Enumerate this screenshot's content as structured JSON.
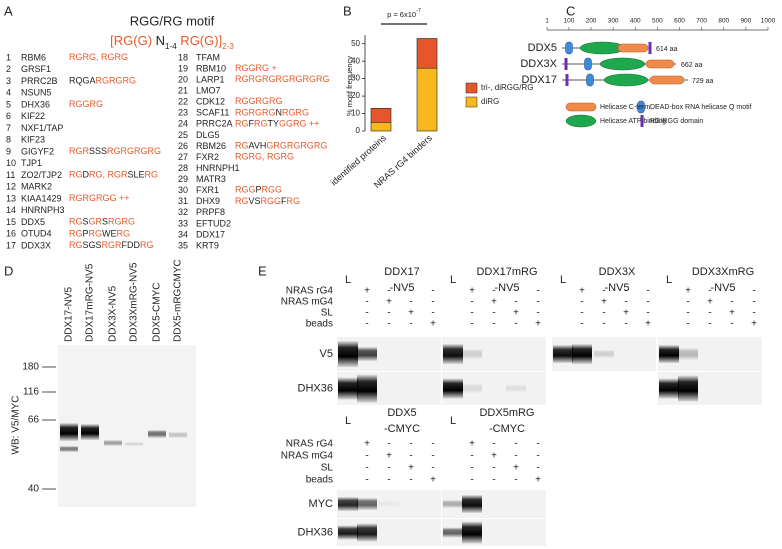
{
  "panel_labels": [
    "A",
    "B",
    "C",
    "D",
    "E"
  ],
  "panel_a": {
    "title": "RGG/RG motif",
    "accent_color": "#e8582a",
    "formula": [
      {
        "text": "[RG(G) ",
        "hl": true
      },
      {
        "text": "N",
        "hl": false
      },
      {
        "text": "1-4",
        "hl": false,
        "sub": true
      },
      {
        "text": " RG(G)]",
        "hl": true
      },
      {
        "text": "2-3",
        "hl": true,
        "sub": true
      }
    ],
    "proteins": [
      {
        "n": 1,
        "name": "RBM6",
        "motif": [
          {
            "text": "RGRG, RGRG",
            "hl": true
          }
        ]
      },
      {
        "n": 2,
        "name": "GRSF1"
      },
      {
        "n": 3,
        "name": "PRRC2B",
        "motif": [
          {
            "text": "RQGA",
            "hl": false
          },
          {
            "text": "RGRGRG",
            "hl": true
          }
        ]
      },
      {
        "n": 4,
        "name": "NSUN5"
      },
      {
        "n": 5,
        "name": "DHX36",
        "motif": [
          {
            "text": "RGGRG",
            "hl": true
          }
        ]
      },
      {
        "n": 6,
        "name": "KIF22"
      },
      {
        "n": 7,
        "name": "NXF1/TAP"
      },
      {
        "n": 8,
        "name": "KIF23"
      },
      {
        "n": 9,
        "name": "GIGYF2",
        "motif": [
          {
            "text": "RGR",
            "hl": true
          },
          {
            "text": "SSS",
            "hl": false
          },
          {
            "text": "RGRGRGRG",
            "hl": true
          }
        ]
      },
      {
        "n": 10,
        "name": "TJP1"
      },
      {
        "n": 11,
        "name": "ZO2/TJP2",
        "motif": [
          {
            "text": "RG",
            "hl": true
          },
          {
            "text": "D",
            "hl": false
          },
          {
            "text": "RG, RGR",
            "hl": true
          },
          {
            "text": "SLE",
            "hl": false
          },
          {
            "text": "RG",
            "hl": true
          }
        ]
      },
      {
        "n": 12,
        "name": "MARK2"
      },
      {
        "n": 13,
        "name": "KIAA1429",
        "motif": [
          {
            "text": "RGRGRGG ++",
            "hl": true
          }
        ]
      },
      {
        "n": 14,
        "name": "HNRNPH3"
      },
      {
        "n": 15,
        "name": "DDX5",
        "motif": [
          {
            "text": "RG",
            "hl": true
          },
          {
            "text": "S",
            "hl": false
          },
          {
            "text": "GR",
            "hl": true
          },
          {
            "text": "S",
            "hl": false
          },
          {
            "text": "RGRG",
            "hl": true
          }
        ]
      },
      {
        "n": 16,
        "name": "OTUD4",
        "motif": [
          {
            "text": "RG",
            "hl": true
          },
          {
            "text": "P",
            "hl": false
          },
          {
            "text": "RG",
            "hl": true
          },
          {
            "text": "WE",
            "hl": false
          },
          {
            "text": "RG",
            "hl": true
          }
        ]
      },
      {
        "n": 17,
        "name": "DDX3X",
        "motif": [
          {
            "text": "RG",
            "hl": true
          },
          {
            "text": "SGS",
            "hl": false
          },
          {
            "text": "RGR",
            "hl": true
          },
          {
            "text": "FDD",
            "hl": false
          },
          {
            "text": "RG",
            "hl": true
          }
        ]
      },
      {
        "n": 18,
        "name": "TFAM"
      },
      {
        "n": 19,
        "name": "RBM10",
        "motif": [
          {
            "text": "RGGRG +",
            "hl": true
          }
        ]
      },
      {
        "n": 20,
        "name": "LARP1",
        "motif": [
          {
            "text": "RGRGRGRGRGRGRG",
            "hl": true
          }
        ]
      },
      {
        "n": 21,
        "name": "LMO7"
      },
      {
        "n": 22,
        "name": "CDK12",
        "motif": [
          {
            "text": "RGGRGRG",
            "hl": true
          }
        ]
      },
      {
        "n": 23,
        "name": "SCAF11",
        "motif": [
          {
            "text": "RGRGRG",
            "hl": true
          },
          {
            "text": "N",
            "hl": false
          },
          {
            "text": "RGRG",
            "hl": true
          }
        ]
      },
      {
        "n": 24,
        "name": "PRRC2A",
        "motif": [
          {
            "text": "RG",
            "hl": true
          },
          {
            "text": "F",
            "hl": false
          },
          {
            "text": "RG",
            "hl": true
          },
          {
            "text": "TY",
            "hl": false
          },
          {
            "text": "GGRG ++",
            "hl": true
          }
        ]
      },
      {
        "n": 25,
        "name": "DLG5"
      },
      {
        "n": 26,
        "name": "RBM26",
        "motif": [
          {
            "text": "RG",
            "hl": true
          },
          {
            "text": "AVH",
            "hl": false
          },
          {
            "text": "GRGRGRGRG",
            "hl": true
          }
        ]
      },
      {
        "n": 27,
        "name": "FXR2",
        "motif": [
          {
            "text": "RGRG, RGRG",
            "hl": true
          }
        ]
      },
      {
        "n": 28,
        "name": "HNRNPH1"
      },
      {
        "n": 29,
        "name": "MATR3"
      },
      {
        "n": 30,
        "name": "FXR1",
        "motif": [
          {
            "text": "RGG",
            "hl": true
          },
          {
            "text": "P",
            "hl": false
          },
          {
            "text": "RGG",
            "hl": true
          }
        ]
      },
      {
        "n": 31,
        "name": "DHX9",
        "motif": [
          {
            "text": "RG",
            "hl": true
          },
          {
            "text": "VS",
            "hl": false
          },
          {
            "text": "RGG",
            "hl": true
          },
          {
            "text": "F",
            "hl": false
          },
          {
            "text": "RG",
            "hl": true
          }
        ]
      },
      {
        "n": 32,
        "name": "PRPF8"
      },
      {
        "n": 33,
        "name": "EFTUD2"
      },
      {
        "n": 34,
        "name": "DDX17"
      },
      {
        "n": 35,
        "name": "KRT9"
      }
    ]
  },
  "chart_data": {
    "type": "bar",
    "stacked": true,
    "y_label": "% motif frequency",
    "categories": [
      "identified proteins",
      "NRAS rG4 binders"
    ],
    "series": [
      {
        "name": "diRG",
        "color": "#f6b81c",
        "values": [
          5,
          36
        ]
      },
      {
        "name": "tri-, diRGG/RG",
        "color": "#e5572b",
        "values": [
          8,
          17
        ]
      }
    ],
    "ylim": [
      0,
      55
    ],
    "yticks": [
      0,
      10,
      20,
      30,
      40,
      50
    ],
    "annotation": {
      "text": "p = 6x10",
      "superscript": "-7"
    }
  },
  "panel_c": {
    "ruler_ticks": [
      1,
      100,
      200,
      300,
      400,
      500,
      600,
      700,
      800,
      900,
      1000
    ],
    "proteins": [
      {
        "name": "DDX5",
        "length": "614 aa"
      },
      {
        "name": "DDX3X",
        "length": "662 aa"
      },
      {
        "name": "DDX17",
        "length": "729 aa"
      }
    ],
    "legend": [
      "Helicase C-term",
      "DEAD-box RNA helicase Q motif",
      "Helicase ATP binding",
      "RG/RGG domain"
    ]
  },
  "panel_d": {
    "y_label": "WB: V5/MYC",
    "lanes": [
      "DDX17-NV5",
      "DDX17mRG-NV5",
      "DDX3X-NV5",
      "DDX3XmRG-NV5",
      "DDX5-CMYC",
      "DDX5-mRGCMYC"
    ],
    "markers": [
      180,
      116,
      66,
      40
    ]
  },
  "panel_e": {
    "ladder": "L",
    "conditions": [
      "NRAS rG4",
      "NRAS mG4",
      "SL",
      "beads"
    ],
    "matrix": [
      [
        "+",
        "-",
        "-",
        "-"
      ],
      [
        "-",
        "+",
        "-",
        "-"
      ],
      [
        "-",
        "-",
        "+",
        "-"
      ],
      [
        "-",
        "-",
        "-",
        "+"
      ]
    ],
    "top": {
      "groups": [
        {
          "name": "DDX17",
          "tag": "-NV5"
        },
        {
          "name": "DDX17mRG",
          "tag": "-NV5"
        },
        {
          "name": "DDX3X",
          "tag": "-NV5"
        },
        {
          "name": "DDX3XmRG",
          "tag": "-NV5"
        }
      ],
      "blots": [
        "V5",
        "DHX36"
      ]
    },
    "bottom": {
      "groups": [
        {
          "name": "DDX5",
          "tag": "-CMYC"
        },
        {
          "name": "DDX5mRG",
          "tag": "-CMYC"
        }
      ],
      "blots": [
        "MYC",
        "DHX36"
      ]
    }
  }
}
